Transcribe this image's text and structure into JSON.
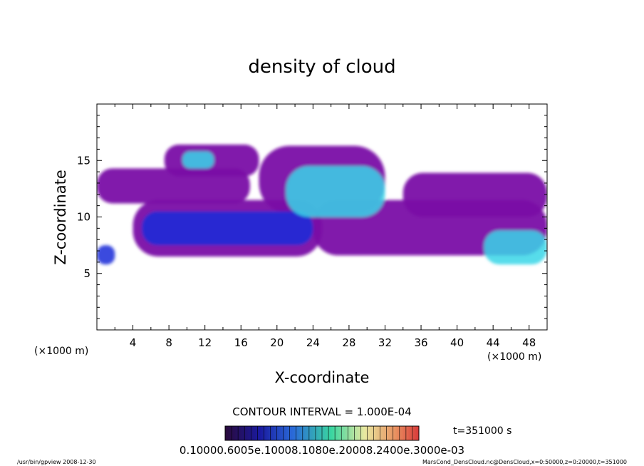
{
  "chart_data": {
    "type": "heatmap",
    "title": "density of cloud",
    "xlabel": "X-coordinate",
    "ylabel": "Z-coordinate",
    "x_unit_left": "(×1000 m)",
    "x_unit_right": "(×1000 m)",
    "xlim": [
      0,
      50
    ],
    "ylim": [
      0,
      20
    ],
    "x_ticks": [
      4,
      8,
      12,
      16,
      20,
      24,
      28,
      32,
      36,
      40,
      44,
      48
    ],
    "y_ticks": [
      5,
      10,
      15
    ],
    "contour_interval_text": "CONTOUR INTERVAL = 1.000E-04",
    "time_text": "t=351000 s",
    "colorbar_label_text": "0.10000.6005e.10008.1080e.20008.2400e.3000e-03",
    "colorbar_levels": [
      0.0,
      0.0003
    ],
    "colors": {
      "low": "#7a0aa6",
      "mid": "#1a2bd8",
      "high": "#3ad6e8",
      "peak": "#43d67a"
    },
    "cloud_regions": [
      {
        "name": "upper-left band",
        "x_range": [
          7.5,
          18
        ],
        "z_range": [
          13.6,
          16.4
        ],
        "level": "low"
      },
      {
        "name": "upper-left core",
        "x_range": [
          9.5,
          13
        ],
        "z_range": [
          14.3,
          15.8
        ],
        "level": "high"
      },
      {
        "name": "left wide band",
        "x_range": [
          0,
          17
        ],
        "z_range": [
          11.2,
          14.3
        ],
        "level": "low"
      },
      {
        "name": "central upper band",
        "x_range": [
          18,
          32
        ],
        "z_range": [
          10.3,
          16.3
        ],
        "level": "low"
      },
      {
        "name": "central core",
        "x_range": [
          21,
          32
        ],
        "z_range": [
          10,
          14.5
        ],
        "level": "high"
      },
      {
        "name": "lower diagonal band",
        "x_range": [
          4,
          25
        ],
        "z_range": [
          6.5,
          11.5
        ],
        "level": "low"
      },
      {
        "name": "lower diagonal core",
        "x_range": [
          5,
          24
        ],
        "z_range": [
          7.5,
          10.5
        ],
        "level": "mid"
      },
      {
        "name": "right mid band",
        "x_range": [
          24,
          50
        ],
        "z_range": [
          6.6,
          11.5
        ],
        "level": "low"
      },
      {
        "name": "right upper band",
        "x_range": [
          34,
          50
        ],
        "z_range": [
          10,
          13.9
        ],
        "level": "low"
      },
      {
        "name": "right lower core",
        "x_range": [
          43,
          50
        ],
        "z_range": [
          5.8,
          8.8
        ],
        "level": "high"
      },
      {
        "name": "far-left low patch",
        "x_range": [
          0,
          2
        ],
        "z_range": [
          5.8,
          7.5
        ],
        "level": "mid"
      }
    ]
  },
  "footer": {
    "left": "/usr/bin/gpview   2008-12-30",
    "right": "MarsCond_DensCloud.nc@DensCloud,x=0:50000,z=0:20000,t=351000"
  }
}
